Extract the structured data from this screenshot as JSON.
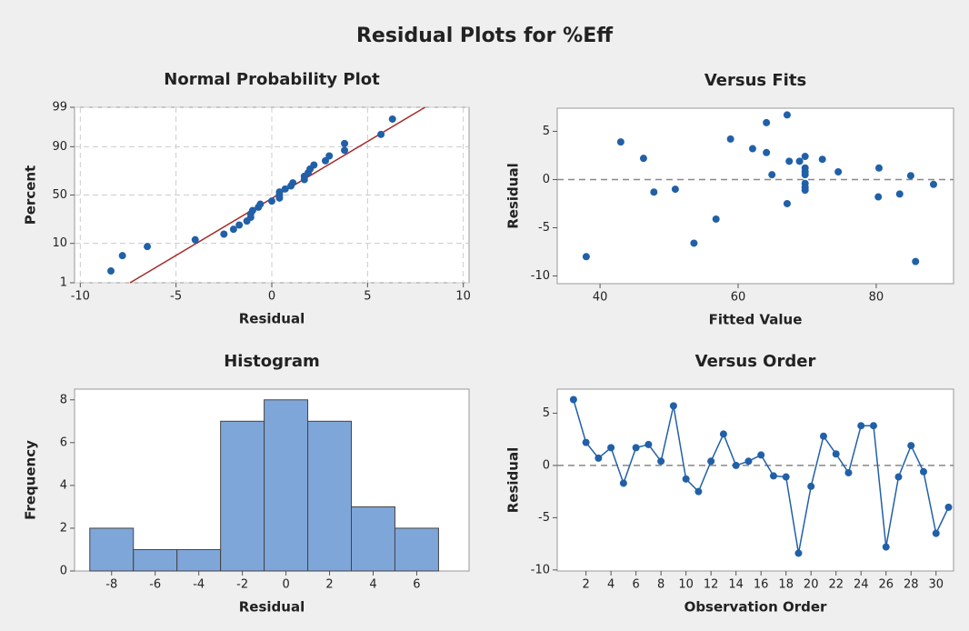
{
  "title": "Residual Plots for %Eff",
  "chart_data": [
    {
      "type": "probability",
      "title": "Normal Probability Plot",
      "x_label": "Residual",
      "y_label": "Percent",
      "yscale": "probability",
      "grid": true,
      "color": "#2160a8",
      "x": [
        -8.4,
        -7.8,
        -6.5,
        -4.0,
        -2.5,
        -2.0,
        -1.7,
        -1.3,
        -1.1,
        -1.1,
        -1.0,
        -0.7,
        -0.6,
        0.0,
        0.4,
        0.4,
        0.4,
        0.7,
        1.0,
        1.1,
        1.7,
        1.7,
        1.9,
        2.0,
        2.2,
        2.8,
        3.0,
        3.8,
        3.8,
        5.7,
        6.3
      ],
      "y": [
        2.2,
        5.4,
        8.6,
        11.8,
        15.0,
        18.2,
        21.3,
        24.5,
        27.7,
        30.9,
        34.1,
        37.3,
        40.4,
        43.6,
        46.8,
        50.0,
        53.2,
        56.4,
        59.6,
        62.7,
        65.9,
        69.1,
        72.3,
        75.5,
        78.7,
        81.8,
        85.0,
        88.2,
        91.4,
        94.6,
        97.8
      ],
      "fit_line": {
        "x": [
          -7.4,
          8.0
        ],
        "y": [
          1,
          99
        ],
        "color": "#a52a2a"
      },
      "xlim": [
        -10.3,
        10.3
      ],
      "xticks": [
        -10,
        -5,
        0,
        5,
        10
      ],
      "ylim": [
        1,
        99
      ],
      "yticks": [
        1,
        10,
        50,
        90,
        99
      ]
    },
    {
      "type": "scatter",
      "title": "Versus Fits",
      "x_label": "Fitted Value",
      "y_label": "Residual",
      "color": "#2160a8",
      "reference_line": 0,
      "x": [
        38.0,
        43.0,
        46.3,
        47.8,
        50.9,
        53.6,
        56.8,
        58.9,
        62.1,
        64.1,
        64.1,
        64.9,
        67.1,
        67.1,
        67.4,
        68.9,
        69.7,
        69.7,
        69.7,
        69.7,
        69.7,
        69.7,
        69.7,
        72.2,
        74.5,
        80.4,
        80.3,
        83.4,
        85.0,
        85.7,
        88.3
      ],
      "y": [
        -8.0,
        3.9,
        2.2,
        -1.3,
        -1.0,
        -6.6,
        -4.1,
        4.2,
        3.2,
        5.9,
        2.8,
        0.5,
        6.7,
        -2.5,
        1.9,
        1.9,
        2.4,
        1.2,
        0.8,
        0.5,
        -0.4,
        -0.8,
        -1.1,
        2.1,
        0.8,
        1.2,
        -1.8,
        -1.5,
        0.4,
        -8.5,
        -0.5
      ],
      "xlim": [
        33.8,
        91.2
      ],
      "xticks": [
        40,
        60,
        80
      ],
      "ylim": [
        -10.8,
        7.4
      ],
      "yticks": [
        -10,
        -5,
        0,
        5
      ]
    },
    {
      "type": "histogram",
      "title": "Histogram",
      "x_label": "Residual",
      "y_label": "Frequency",
      "color": "#7fa6d9",
      "bins": [
        -9,
        -7,
        -5,
        -3,
        -1,
        1,
        3,
        5,
        7
      ],
      "counts": [
        2,
        1,
        1,
        7,
        8,
        7,
        3,
        2
      ],
      "xlim": [
        -9.7,
        8.4
      ],
      "xticks": [
        -8,
        -6,
        -4,
        -2,
        0,
        2,
        4,
        6
      ],
      "ylim": [
        0,
        8.5
      ],
      "yticks": [
        0,
        2,
        4,
        6,
        8
      ]
    },
    {
      "type": "line",
      "title": "Versus Order",
      "x_label": "Observation Order",
      "y_label": "Residual",
      "color": "#2160a8",
      "reference_line": 0,
      "x": [
        1,
        2,
        3,
        4,
        5,
        6,
        7,
        8,
        9,
        10,
        11,
        12,
        13,
        14,
        15,
        16,
        17,
        18,
        19,
        20,
        21,
        22,
        23,
        24,
        25,
        26,
        27,
        28,
        29,
        30,
        31
      ],
      "y": [
        6.3,
        2.2,
        0.7,
        1.7,
        -1.7,
        1.7,
        2.0,
        0.4,
        5.7,
        -1.3,
        -2.5,
        0.4,
        3.0,
        0.0,
        0.4,
        1.0,
        -1.0,
        -1.1,
        -8.4,
        -2.0,
        2.8,
        1.1,
        -0.7,
        3.8,
        3.8,
        -7.8,
        -1.1,
        1.9,
        -0.6,
        -6.5,
        -4.0
      ],
      "xlim": [
        -0.3,
        31.4
      ],
      "xticks": [
        2,
        4,
        6,
        8,
        10,
        12,
        14,
        16,
        18,
        20,
        22,
        24,
        26,
        28,
        30
      ],
      "ylim": [
        -10.1,
        7.3
      ],
      "yticks": [
        -10,
        -5,
        0,
        5
      ]
    }
  ]
}
